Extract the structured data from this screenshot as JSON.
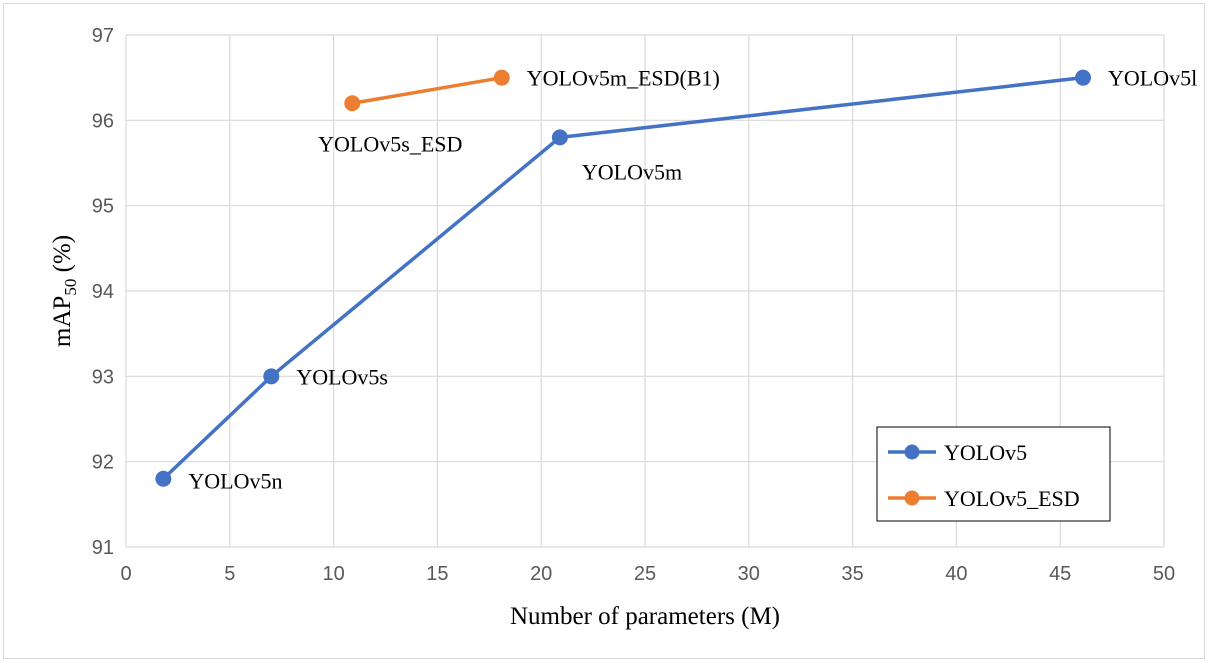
{
  "chart_data": {
    "type": "line",
    "xlabel": "Number of parameters (M)",
    "ylabel": {
      "main": "mAP",
      "sub": "50",
      "tail": " (%)"
    },
    "xlim": [
      0,
      50
    ],
    "ylim": [
      91,
      97
    ],
    "x_ticks": [
      "0",
      "5",
      "10",
      "15",
      "20",
      "25",
      "30",
      "35",
      "40",
      "45",
      "50"
    ],
    "y_ticks": [
      "91",
      "92",
      "93",
      "94",
      "95",
      "96",
      "97"
    ],
    "grid": true,
    "legend_position": "bottom-right",
    "series": [
      {
        "name": "YOLOv5",
        "color": "#4472c4",
        "points": [
          {
            "x": 1.8,
            "y": 91.8,
            "label": "YOLOv5n",
            "label_pos": "right-below"
          },
          {
            "x": 7.0,
            "y": 93.0,
            "label": "YOLOv5s",
            "label_pos": "right"
          },
          {
            "x": 20.9,
            "y": 95.8,
            "label": "YOLOv5m",
            "label_pos": "below-right"
          },
          {
            "x": 46.1,
            "y": 96.5,
            "label": "YOLOv5l",
            "label_pos": "right"
          }
        ]
      },
      {
        "name": "YOLOv5_ESD",
        "color": "#ed7d31",
        "points": [
          {
            "x": 10.9,
            "y": 96.2,
            "label": "YOLOv5s_ESD",
            "label_pos": "below"
          },
          {
            "x": 18.1,
            "y": 96.5,
            "label": "YOLOv5m_ESD(B1)",
            "label_pos": "right"
          }
        ]
      }
    ]
  }
}
